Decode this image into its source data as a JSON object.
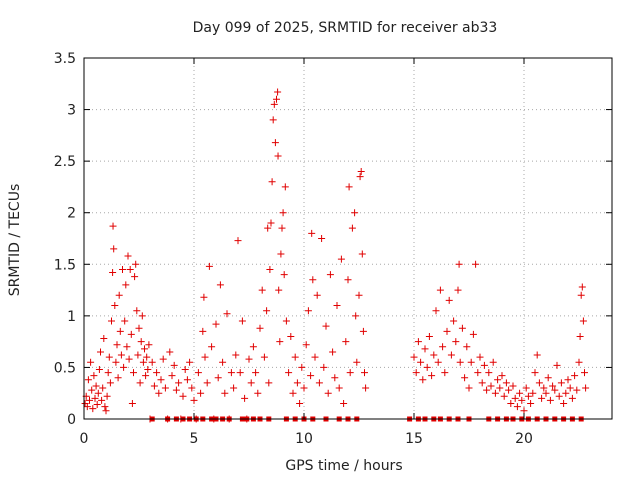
{
  "chart_data": {
    "type": "scatter",
    "title": "Day 099 of 2025, SRMTID for receiver ab33",
    "xlabel": "GPS time / hours",
    "ylabel": "SRMTID / TECUs",
    "xlim": [
      0,
      24
    ],
    "ylim": [
      0,
      3.5
    ],
    "xticks": [
      0,
      5,
      10,
      15,
      20
    ],
    "xtick_labels": [
      "0",
      "5",
      "10",
      "15",
      "20"
    ],
    "yticks": [
      0,
      0.5,
      1,
      1.5,
      2,
      2.5,
      3,
      3.5
    ],
    "ytick_labels": [
      "0",
      "0.5",
      "1",
      "1.5",
      "2",
      "2.5",
      "3",
      "3.5"
    ],
    "grid": true,
    "marker": "+",
    "color": "#e00000",
    "series": [
      {
        "name": "SRMTID",
        "points": [
          [
            0.05,
            0.15
          ],
          [
            0.1,
            0.22
          ],
          [
            0.15,
            0.12
          ],
          [
            0.2,
            0.38
          ],
          [
            0.25,
            0.18
          ],
          [
            0.3,
            0.55
          ],
          [
            0.35,
            0.28
          ],
          [
            0.4,
            0.1
          ],
          [
            0.45,
            0.42
          ],
          [
            0.5,
            0.2
          ],
          [
            0.55,
            0.32
          ],
          [
            0.6,
            0.14
          ],
          [
            0.65,
            0.25
          ],
          [
            0.7,
            0.48
          ],
          [
            0.75,
            0.65
          ],
          [
            0.8,
            0.18
          ],
          [
            0.85,
            0.3
          ],
          [
            0.9,
            0.78
          ],
          [
            0.95,
            0.12
          ],
          [
            1.0,
            0.08
          ],
          [
            1.05,
            0.22
          ],
          [
            1.1,
            0.45
          ],
          [
            1.15,
            0.6
          ],
          [
            1.2,
            0.35
          ],
          [
            1.25,
            0.95
          ],
          [
            1.3,
            1.42
          ],
          [
            1.32,
            1.87
          ],
          [
            1.35,
            1.65
          ],
          [
            1.4,
            1.1
          ],
          [
            1.45,
            0.55
          ],
          [
            1.5,
            0.72
          ],
          [
            1.55,
            0.4
          ],
          [
            1.6,
            1.2
          ],
          [
            1.65,
            0.85
          ],
          [
            1.7,
            0.62
          ],
          [
            1.75,
            1.45
          ],
          [
            1.8,
            0.5
          ],
          [
            1.85,
            0.95
          ],
          [
            1.9,
            1.3
          ],
          [
            1.95,
            0.7
          ],
          [
            2.0,
            1.58
          ],
          [
            2.05,
            0.58
          ],
          [
            2.1,
            1.45
          ],
          [
            2.15,
            0.82
          ],
          [
            2.2,
            0.15
          ],
          [
            2.25,
            0.45
          ],
          [
            2.3,
            1.38
          ],
          [
            2.35,
            1.5
          ],
          [
            2.4,
            1.05
          ],
          [
            2.45,
            0.62
          ],
          [
            2.5,
            0.88
          ],
          [
            2.55,
            0.35
          ],
          [
            2.6,
            0.75
          ],
          [
            2.65,
            1.0
          ],
          [
            2.7,
            0.55
          ],
          [
            2.75,
            0.68
          ],
          [
            2.8,
            0.42
          ],
          [
            2.85,
            0.6
          ],
          [
            2.9,
            0.48
          ],
          [
            2.95,
            0.72
          ],
          [
            3.0,
            0.0
          ],
          [
            3.1,
            0.55
          ],
          [
            3.2,
            0.32
          ],
          [
            3.3,
            0.45
          ],
          [
            3.4,
            0.25
          ],
          [
            3.5,
            0.38
          ],
          [
            3.6,
            0.58
          ],
          [
            3.7,
            0.3
          ],
          [
            3.8,
            0.0
          ],
          [
            3.9,
            0.65
          ],
          [
            4.0,
            0.42
          ],
          [
            4.1,
            0.52
          ],
          [
            4.2,
            0.28
          ],
          [
            4.3,
            0.35
          ],
          [
            4.4,
            0.0
          ],
          [
            4.5,
            0.22
          ],
          [
            4.6,
            0.48
          ],
          [
            4.7,
            0.38
          ],
          [
            4.8,
            0.55
          ],
          [
            4.9,
            0.3
          ],
          [
            5.0,
            0.18
          ],
          [
            5.1,
            0.0
          ],
          [
            5.2,
            0.45
          ],
          [
            5.3,
            0.25
          ],
          [
            5.4,
            0.85
          ],
          [
            5.45,
            1.18
          ],
          [
            5.5,
            0.6
          ],
          [
            5.6,
            0.35
          ],
          [
            5.7,
            1.48
          ],
          [
            5.8,
            0.7
          ],
          [
            5.9,
            0.0
          ],
          [
            6.0,
            0.92
          ],
          [
            6.1,
            0.4
          ],
          [
            6.2,
            1.3
          ],
          [
            6.3,
            0.55
          ],
          [
            6.4,
            0.25
          ],
          [
            6.5,
            1.02
          ],
          [
            6.6,
            0.0
          ],
          [
            6.7,
            0.45
          ],
          [
            6.8,
            0.3
          ],
          [
            6.9,
            0.62
          ],
          [
            7.0,
            1.73
          ],
          [
            7.1,
            0.45
          ],
          [
            7.2,
            0.95
          ],
          [
            7.3,
            0.2
          ],
          [
            7.4,
            0.0
          ],
          [
            7.5,
            0.58
          ],
          [
            7.6,
            0.35
          ],
          [
            7.7,
            0.7
          ],
          [
            7.8,
            0.45
          ],
          [
            7.9,
            0.25
          ],
          [
            8.0,
            0.88
          ],
          [
            8.1,
            1.25
          ],
          [
            8.2,
            0.6
          ],
          [
            8.3,
            1.05
          ],
          [
            8.35,
            1.85
          ],
          [
            8.4,
            0.35
          ],
          [
            8.45,
            1.45
          ],
          [
            8.5,
            1.9
          ],
          [
            8.55,
            2.3
          ],
          [
            8.6,
            2.9
          ],
          [
            8.65,
            3.05
          ],
          [
            8.7,
            2.68
          ],
          [
            8.75,
            3.1
          ],
          [
            8.8,
            3.17
          ],
          [
            8.82,
            2.55
          ],
          [
            8.85,
            1.25
          ],
          [
            8.9,
            0.75
          ],
          [
            8.95,
            1.6
          ],
          [
            9.0,
            1.85
          ],
          [
            9.05,
            2.0
          ],
          [
            9.1,
            1.4
          ],
          [
            9.15,
            2.25
          ],
          [
            9.2,
            0.95
          ],
          [
            9.3,
            0.45
          ],
          [
            9.4,
            0.8
          ],
          [
            9.5,
            0.25
          ],
          [
            9.6,
            0.6
          ],
          [
            9.7,
            0.35
          ],
          [
            9.8,
            0.15
          ],
          [
            9.9,
            0.5
          ],
          [
            10.0,
            0.3
          ],
          [
            10.1,
            0.72
          ],
          [
            10.2,
            1.05
          ],
          [
            10.3,
            0.42
          ],
          [
            10.35,
            1.8
          ],
          [
            10.4,
            1.35
          ],
          [
            10.5,
            0.6
          ],
          [
            10.6,
            1.2
          ],
          [
            10.7,
            0.35
          ],
          [
            10.8,
            1.75
          ],
          [
            10.9,
            0.5
          ],
          [
            11.0,
            0.9
          ],
          [
            11.1,
            0.25
          ],
          [
            11.2,
            1.4
          ],
          [
            11.3,
            0.65
          ],
          [
            11.4,
            0.4
          ],
          [
            11.5,
            1.1
          ],
          [
            11.6,
            0.3
          ],
          [
            11.7,
            1.55
          ],
          [
            11.8,
            0.15
          ],
          [
            11.9,
            0.75
          ],
          [
            12.0,
            1.35
          ],
          [
            12.05,
            2.25
          ],
          [
            12.1,
            0.45
          ],
          [
            12.2,
            1.85
          ],
          [
            12.3,
            2.0
          ],
          [
            12.35,
            1.0
          ],
          [
            12.4,
            0.55
          ],
          [
            12.5,
            1.2
          ],
          [
            12.55,
            2.35
          ],
          [
            12.6,
            2.4
          ],
          [
            12.65,
            1.6
          ],
          [
            12.7,
            0.85
          ],
          [
            12.75,
            0.45
          ],
          [
            12.8,
            0.3
          ],
          [
            15.0,
            0.6
          ],
          [
            15.1,
            0.45
          ],
          [
            15.2,
            0.75
          ],
          [
            15.3,
            0.55
          ],
          [
            15.4,
            0.38
          ],
          [
            15.5,
            0.68
          ],
          [
            15.6,
            0.5
          ],
          [
            15.7,
            0.8
          ],
          [
            15.8,
            0.42
          ],
          [
            15.9,
            0.62
          ],
          [
            16.0,
            1.05
          ],
          [
            16.1,
            0.55
          ],
          [
            16.2,
            1.25
          ],
          [
            16.3,
            0.7
          ],
          [
            16.4,
            0.45
          ],
          [
            16.5,
            0.85
          ],
          [
            16.6,
            1.15
          ],
          [
            16.7,
            0.62
          ],
          [
            16.8,
            0.95
          ],
          [
            16.9,
            0.75
          ],
          [
            17.0,
            1.25
          ],
          [
            17.05,
            1.5
          ],
          [
            17.1,
            0.55
          ],
          [
            17.2,
            0.88
          ],
          [
            17.3,
            0.4
          ],
          [
            17.4,
            0.7
          ],
          [
            17.5,
            0.3
          ],
          [
            17.6,
            0.55
          ],
          [
            17.7,
            0.82
          ],
          [
            17.8,
            1.5
          ],
          [
            17.9,
            0.45
          ],
          [
            18.0,
            0.6
          ],
          [
            18.1,
            0.35
          ],
          [
            18.2,
            0.52
          ],
          [
            18.3,
            0.28
          ],
          [
            18.4,
            0.45
          ],
          [
            18.5,
            0.32
          ],
          [
            18.6,
            0.55
          ],
          [
            18.7,
            0.25
          ],
          [
            18.8,
            0.38
          ],
          [
            18.9,
            0.3
          ],
          [
            19.0,
            0.42
          ],
          [
            19.1,
            0.22
          ],
          [
            19.2,
            0.35
          ],
          [
            19.3,
            0.28
          ],
          [
            19.4,
            0.15
          ],
          [
            19.5,
            0.32
          ],
          [
            19.6,
            0.2
          ],
          [
            19.7,
            0.12
          ],
          [
            19.8,
            0.25
          ],
          [
            19.9,
            0.18
          ],
          [
            20.0,
            0.08
          ],
          [
            20.1,
            0.3
          ],
          [
            20.2,
            0.22
          ],
          [
            20.3,
            0.15
          ],
          [
            20.4,
            0.25
          ],
          [
            20.5,
            0.45
          ],
          [
            20.6,
            0.62
          ],
          [
            20.7,
            0.35
          ],
          [
            20.8,
            0.2
          ],
          [
            20.9,
            0.3
          ],
          [
            21.0,
            0.25
          ],
          [
            21.1,
            0.4
          ],
          [
            21.2,
            0.18
          ],
          [
            21.3,
            0.32
          ],
          [
            21.4,
            0.28
          ],
          [
            21.5,
            0.52
          ],
          [
            21.6,
            0.22
          ],
          [
            21.7,
            0.35
          ],
          [
            21.8,
            0.15
          ],
          [
            21.9,
            0.25
          ],
          [
            22.0,
            0.38
          ],
          [
            22.1,
            0.3
          ],
          [
            22.2,
            0.2
          ],
          [
            22.3,
            0.42
          ],
          [
            22.4,
            0.28
          ],
          [
            22.5,
            0.55
          ],
          [
            22.55,
            0.8
          ],
          [
            22.6,
            1.2
          ],
          [
            22.65,
            1.28
          ],
          [
            22.7,
            0.95
          ],
          [
            22.75,
            0.45
          ],
          [
            22.8,
            0.3
          ]
        ]
      }
    ],
    "zero_markers_x": [
      3.1,
      3.8,
      4.2,
      4.5,
      4.8,
      5.1,
      5.4,
      5.8,
      6.0,
      6.3,
      6.6,
      7.2,
      7.4,
      7.7,
      8.0,
      8.4,
      9.2,
      9.6,
      10.0,
      10.4,
      11.0,
      11.6,
      12.0,
      12.4,
      14.8,
      15.2,
      15.5,
      15.9,
      16.2,
      16.6,
      17.0,
      17.5,
      18.4,
      18.8,
      19.2,
      19.5,
      19.9,
      20.2,
      20.6,
      21.0,
      21.4,
      21.8,
      22.2,
      22.6
    ]
  }
}
